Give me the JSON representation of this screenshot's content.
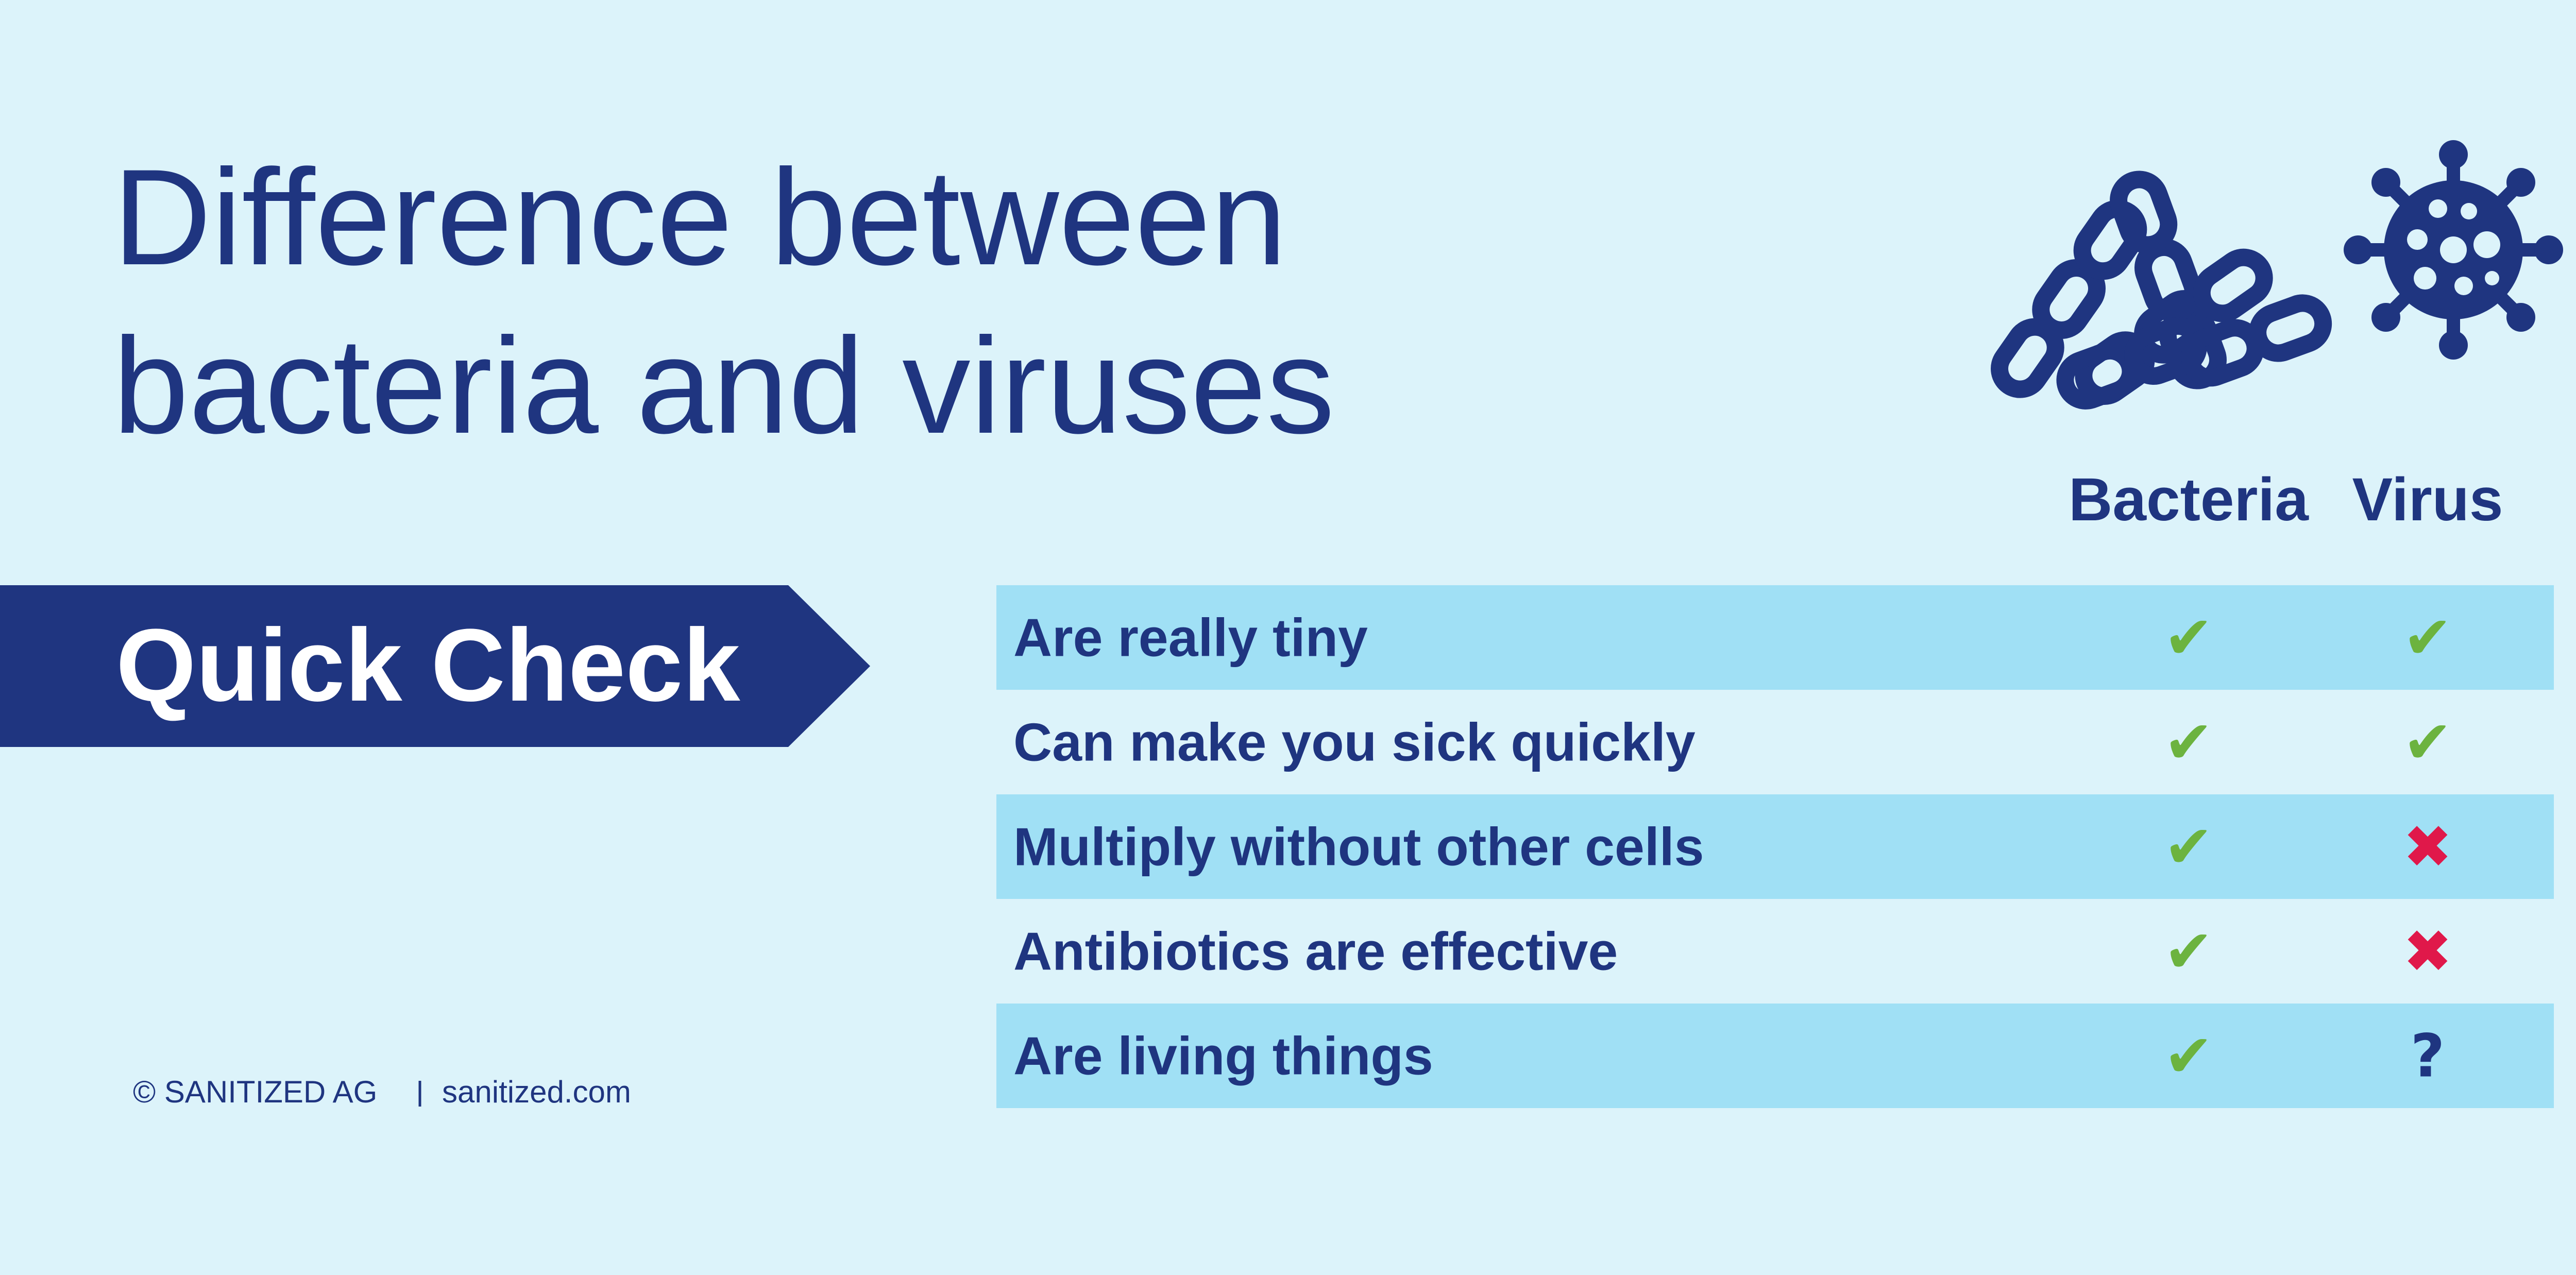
{
  "header": {
    "title_lines": [
      "Difference between",
      "bacteria and viruses"
    ]
  },
  "banner": {
    "label": "Quick Check"
  },
  "table": {
    "columns": [
      "Bacteria",
      "Virus"
    ],
    "rows": [
      {
        "label": "Are really tiny",
        "cells": [
          {
            "mark": "✔",
            "color": "#6cb33f"
          },
          {
            "mark": "✔",
            "color": "#6cb33f"
          }
        ]
      },
      {
        "label": "Can make you sick quickly",
        "cells": [
          {
            "mark": "✔",
            "color": "#6cb33f"
          },
          {
            "mark": "✔",
            "color": "#6cb33f"
          }
        ]
      },
      {
        "label": "Multiply without other cells",
        "cells": [
          {
            "mark": "✔",
            "color": "#6cb33f"
          },
          {
            "mark": "✖",
            "color": "#e0184a"
          }
        ]
      },
      {
        "label": "Antibiotics are effective",
        "cells": [
          {
            "mark": "✔",
            "color": "#6cb33f"
          },
          {
            "mark": "✖",
            "color": "#e0184a"
          }
        ]
      },
      {
        "label": "Are living things",
        "cells": [
          {
            "mark": "✔",
            "color": "#6cb33f"
          },
          {
            "mark": "?",
            "color": "#1f3580"
          }
        ]
      }
    ],
    "shaded_color": "#a0e0f5"
  },
  "footer": {
    "company": "© SANITIZED AG",
    "website": "sanitized.com"
  }
}
